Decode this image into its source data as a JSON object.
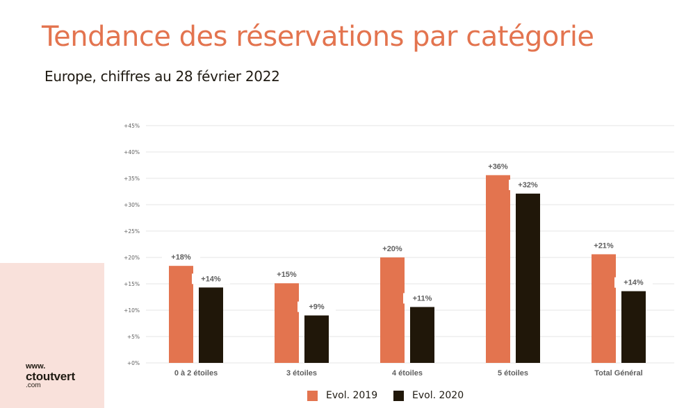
{
  "header": {
    "title": "Tendance des réservations par catégorie",
    "subtitle": "Europe, chiffres au 28 février 2022"
  },
  "logo": {
    "line1": "www.",
    "line2": "ctoutvert",
    "line3": ".com"
  },
  "colors": {
    "accent": "#e3744f",
    "dark": "#201709",
    "background_panel": "#f9e1db",
    "gridline": "#e6e6e6",
    "label": "#5f5f5f"
  },
  "chart_data": {
    "type": "bar",
    "title": "Tendance des réservations par catégorie",
    "subtitle": "Europe, chiffres au 28 février 2022",
    "xlabel": "",
    "ylabel": "",
    "ylim": [
      0,
      45
    ],
    "yticks": [
      0,
      5,
      10,
      15,
      20,
      25,
      30,
      35,
      40,
      45
    ],
    "ytick_labels": [
      "+0%",
      "+5%",
      "+10%",
      "+15%",
      "+20%",
      "+25%",
      "+30%",
      "+35%",
      "+40%",
      "+45%"
    ],
    "grid": true,
    "legend_position": "bottom-center",
    "categories": [
      "0 à 2 étoiles",
      "3 étoiles",
      "4 étoiles",
      "5 étoiles",
      "Total Général"
    ],
    "series": [
      {
        "name": "Evol. 2019",
        "color": "#e3744f",
        "values": [
          18.4,
          15.1,
          20.0,
          35.6,
          20.6
        ],
        "data_labels": [
          "+18%",
          "+15%",
          "+20%",
          "+36%",
          "+21%"
        ]
      },
      {
        "name": "Evol. 2020",
        "color": "#201709",
        "values": [
          14.3,
          9.0,
          10.6,
          32.1,
          13.6
        ],
        "data_labels": [
          "+14%",
          "+9%",
          "+11%",
          "+32%",
          "+14%"
        ]
      }
    ]
  }
}
